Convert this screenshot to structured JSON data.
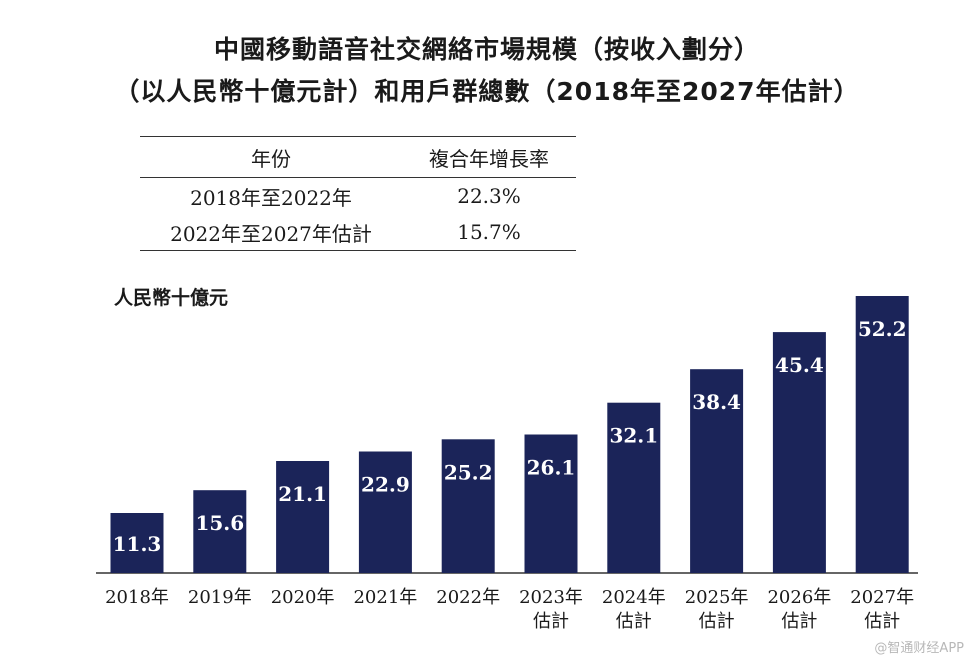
{
  "header": {
    "title_line1": "中國移動語音社交網絡市場規模（按收入劃分）",
    "title_line2": "（以人民幣十億元計）和用戶群總數（2018年至2027年估計）"
  },
  "cagr_table": {
    "headers": [
      "年份",
      "複合年增長率"
    ],
    "rows": [
      {
        "period": "2018年至2022年",
        "rate": "22.3%"
      },
      {
        "period": "2022年至2027年估計",
        "rate": "15.7%"
      }
    ]
  },
  "chart_data": {
    "type": "bar",
    "title": "",
    "xlabel": "",
    "ylabel": "人民幣十億元",
    "categories": [
      "2018年",
      "2019年",
      "2020年",
      "2021年",
      "2022年",
      "2023年 估計",
      "2024年 估計",
      "2025年 估計",
      "2026年 估計",
      "2027年 估計"
    ],
    "values": [
      11.3,
      15.6,
      21.1,
      22.9,
      25.2,
      26.1,
      32.1,
      38.4,
      45.4,
      52.2
    ],
    "value_labels": [
      "11.3",
      "15.6",
      "21.1",
      "22.9",
      "25.2",
      "26.1",
      "32.1",
      "38.4",
      "45.4",
      "52.2"
    ],
    "ylim": [
      0,
      52.2
    ],
    "grid": false,
    "legend": "none",
    "bar_color": "#1b2459"
  },
  "watermark": "@智通财经APP"
}
